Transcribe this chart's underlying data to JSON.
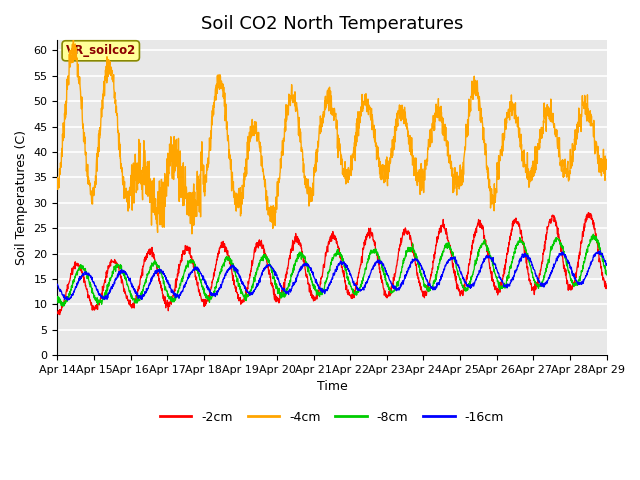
{
  "title": "Soil CO2 North Temperatures",
  "ylabel": "Soil Temperatures (C)",
  "xlabel": "Time",
  "annotation_label": "VR_soilco2",
  "annotation_color": "#8B0000",
  "annotation_bg": "#FFFF99",
  "ylim": [
    0,
    62
  ],
  "yticks": [
    0,
    5,
    10,
    15,
    20,
    25,
    30,
    35,
    40,
    45,
    50,
    55,
    60
  ],
  "x_labels": [
    "Apr 14",
    "Apr 15",
    "Apr 16",
    "Apr 17",
    "Apr 18",
    "Apr 19",
    "Apr 20",
    "Apr 21",
    "Apr 22",
    "Apr 23",
    "Apr 24",
    "Apr 25",
    "Apr 26",
    "Apr 27",
    "Apr 28",
    "Apr 29"
  ],
  "line_colors": {
    "neg2cm": "#FF0000",
    "neg4cm": "#FFA500",
    "neg8cm": "#00CC00",
    "neg16cm": "#0000FF"
  },
  "legend_labels": [
    "-2cm",
    "-4cm",
    "-8cm",
    "-16cm"
  ],
  "bg_color": "#E8E8E8",
  "title_fontsize": 13,
  "label_fontsize": 9,
  "tick_fontsize": 8
}
